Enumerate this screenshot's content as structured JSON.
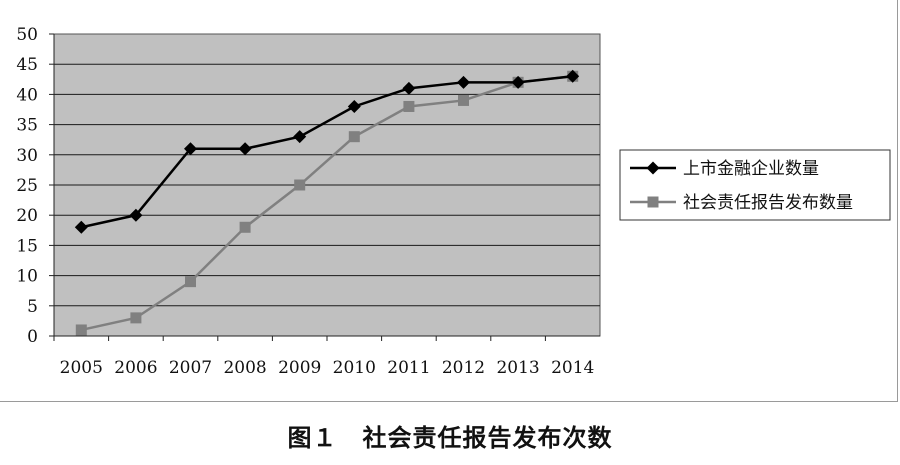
{
  "caption": "图１　社会责任报告发布次数",
  "chart_data": {
    "type": "line",
    "title": "",
    "xlabel": "",
    "ylabel": "",
    "categories": [
      "2005",
      "2006",
      "2007",
      "2008",
      "2009",
      "2010",
      "2011",
      "2012",
      "2013",
      "2014"
    ],
    "ylim": [
      0,
      50
    ],
    "yticks": [
      0,
      5,
      10,
      15,
      20,
      25,
      30,
      35,
      40,
      45,
      50
    ],
    "grid": true,
    "legend_position": "right",
    "plot_background": "#c0c0c0",
    "series": [
      {
        "name": "上市金融企业数量",
        "marker": "diamond",
        "color": "#000000",
        "values": [
          18,
          20,
          31,
          31,
          33,
          38,
          41,
          42,
          42,
          43
        ]
      },
      {
        "name": "社会责任报告发布数量",
        "marker": "square",
        "color": "#808080",
        "values": [
          1,
          3,
          9,
          18,
          25,
          33,
          38,
          39,
          42,
          43
        ]
      }
    ]
  }
}
